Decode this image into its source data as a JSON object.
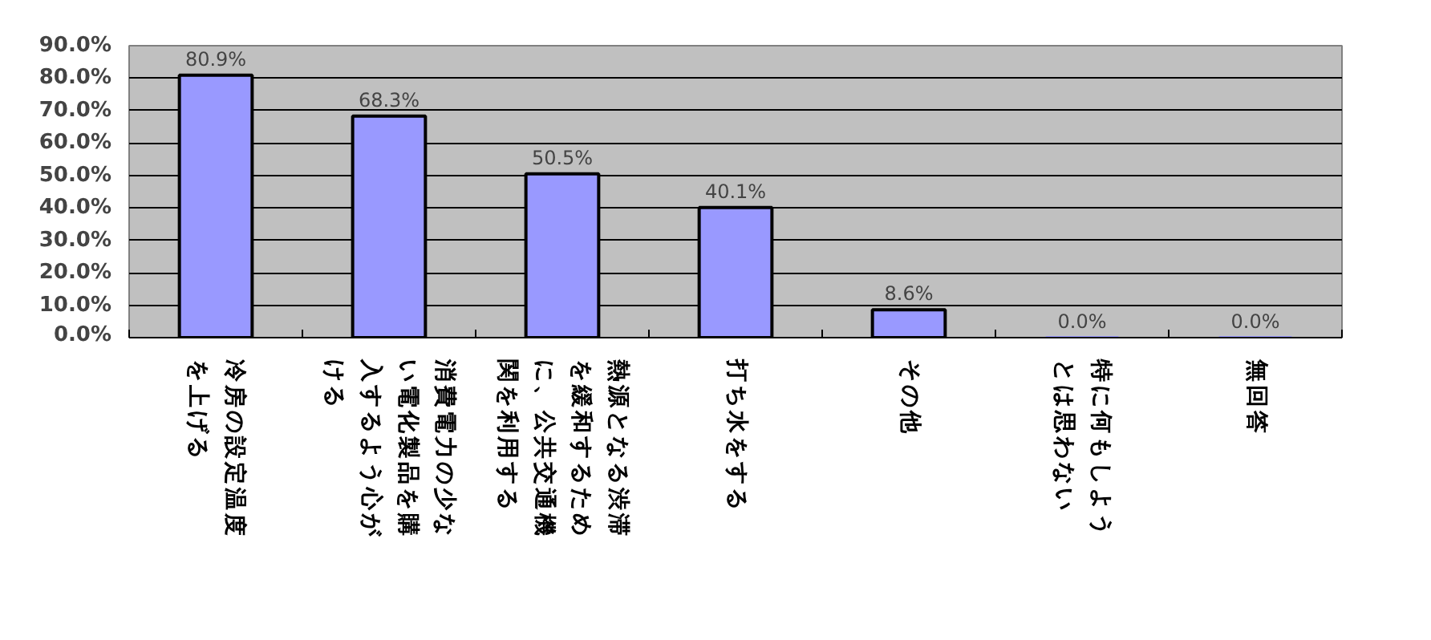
{
  "chart_data": {
    "type": "bar",
    "categories": [
      "冷房の設定温度を上げる",
      "消費電力の少ない電化製品を購入するよう心がける",
      "熱源となる渋滞を緩和するために、公共交通機関を利用する",
      "打ち水をする",
      "その他",
      "特に何もしようとは思わない",
      "無回答"
    ],
    "values": [
      80.9,
      68.3,
      50.5,
      40.1,
      8.6,
      0.0,
      0.0
    ],
    "value_labels": [
      "80.9%",
      "68.3%",
      "50.5%",
      "40.1%",
      "8.6%",
      "0.0%",
      "0.0%"
    ],
    "color": "#9999ff",
    "ylim": [
      0,
      90
    ],
    "yticks": [
      {
        "value": 0,
        "label": "0.0%"
      },
      {
        "value": 10,
        "label": "10.0%"
      },
      {
        "value": 20,
        "label": "20.0%"
      },
      {
        "value": 30,
        "label": "30.0%"
      },
      {
        "value": 40,
        "label": "40.0%"
      },
      {
        "value": 50,
        "label": "50.0%"
      },
      {
        "value": 60,
        "label": "60.0%"
      },
      {
        "value": 70,
        "label": "70.0%"
      },
      {
        "value": 80,
        "label": "80.0%"
      },
      {
        "value": 90,
        "label": "90.0%"
      }
    ],
    "grid": "y"
  }
}
